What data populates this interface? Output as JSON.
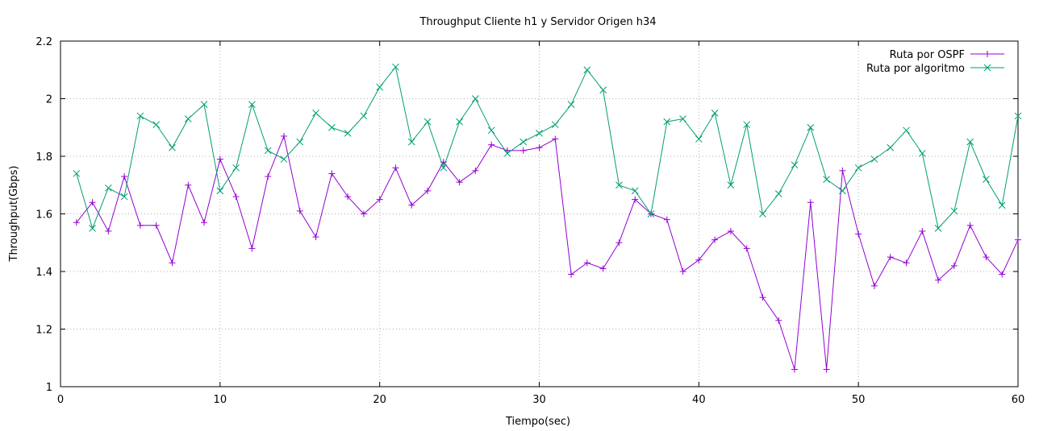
{
  "chart_data": {
    "type": "line",
    "title": "Throughput Cliente h1 y Servidor Origen h34",
    "xlabel": "Tiempo(sec)",
    "ylabel": "Throughput(Gbps)",
    "xlim": [
      0,
      60
    ],
    "ylim": [
      1,
      2.2
    ],
    "xticks": [
      0,
      10,
      20,
      30,
      40,
      50,
      60
    ],
    "yticks": [
      1,
      1.2,
      1.4,
      1.6,
      1.8,
      2,
      2.2
    ],
    "xtick_labels": [
      "0",
      "10",
      "20",
      "30",
      "40",
      "50",
      "60"
    ],
    "ytick_labels": [
      "1",
      "1.2",
      "1.4",
      "1.6",
      "1.8",
      "2",
      "2.2"
    ],
    "grid": true,
    "legend_position": "top-right",
    "x": [
      1,
      2,
      3,
      4,
      5,
      6,
      7,
      8,
      9,
      10,
      11,
      12,
      13,
      14,
      15,
      16,
      17,
      18,
      19,
      20,
      21,
      22,
      23,
      24,
      25,
      26,
      27,
      28,
      29,
      30,
      31,
      32,
      33,
      34,
      35,
      36,
      37,
      38,
      39,
      40,
      41,
      42,
      43,
      44,
      45,
      46,
      47,
      48,
      49,
      50,
      51,
      52,
      53,
      54,
      55,
      56,
      57,
      58,
      59,
      60
    ],
    "series": [
      {
        "name": "Ruta por OSPF",
        "color": "#9400d3",
        "marker": "plus",
        "values": [
          1.57,
          1.64,
          1.54,
          1.73,
          1.56,
          1.56,
          1.43,
          1.7,
          1.57,
          1.79,
          1.66,
          1.48,
          1.73,
          1.87,
          1.61,
          1.52,
          1.74,
          1.66,
          1.6,
          1.65,
          1.76,
          1.63,
          1.68,
          1.78,
          1.71,
          1.75,
          1.84,
          1.82,
          1.82,
          1.83,
          1.86,
          1.39,
          1.43,
          1.41,
          1.5,
          1.65,
          1.6,
          1.58,
          1.4,
          1.44,
          1.51,
          1.54,
          1.48,
          1.31,
          1.23,
          1.06,
          1.64,
          1.06,
          1.75,
          1.53,
          1.35,
          1.45,
          1.43,
          1.54,
          1.37,
          1.42,
          1.56,
          1.45,
          1.39,
          1.51
        ]
      },
      {
        "name": "Ruta por algoritmo",
        "color": "#009e73",
        "marker": "cross",
        "values": [
          1.74,
          1.55,
          1.69,
          1.66,
          1.94,
          1.91,
          1.83,
          1.93,
          1.98,
          1.68,
          1.76,
          1.98,
          1.82,
          1.79,
          1.85,
          1.95,
          1.9,
          1.88,
          1.94,
          2.04,
          2.11,
          1.85,
          1.92,
          1.76,
          1.92,
          2.0,
          1.89,
          1.81,
          1.85,
          1.88,
          1.91,
          1.98,
          2.1,
          2.03,
          1.7,
          1.68,
          1.6,
          1.92,
          1.93,
          1.86,
          1.95,
          1.7,
          1.91,
          1.6,
          1.67,
          1.77,
          1.9,
          1.72,
          1.68,
          1.76,
          1.79,
          1.83,
          1.89,
          1.81,
          1.55,
          1.61,
          1.85,
          1.72,
          1.63,
          1.94
        ]
      }
    ]
  }
}
